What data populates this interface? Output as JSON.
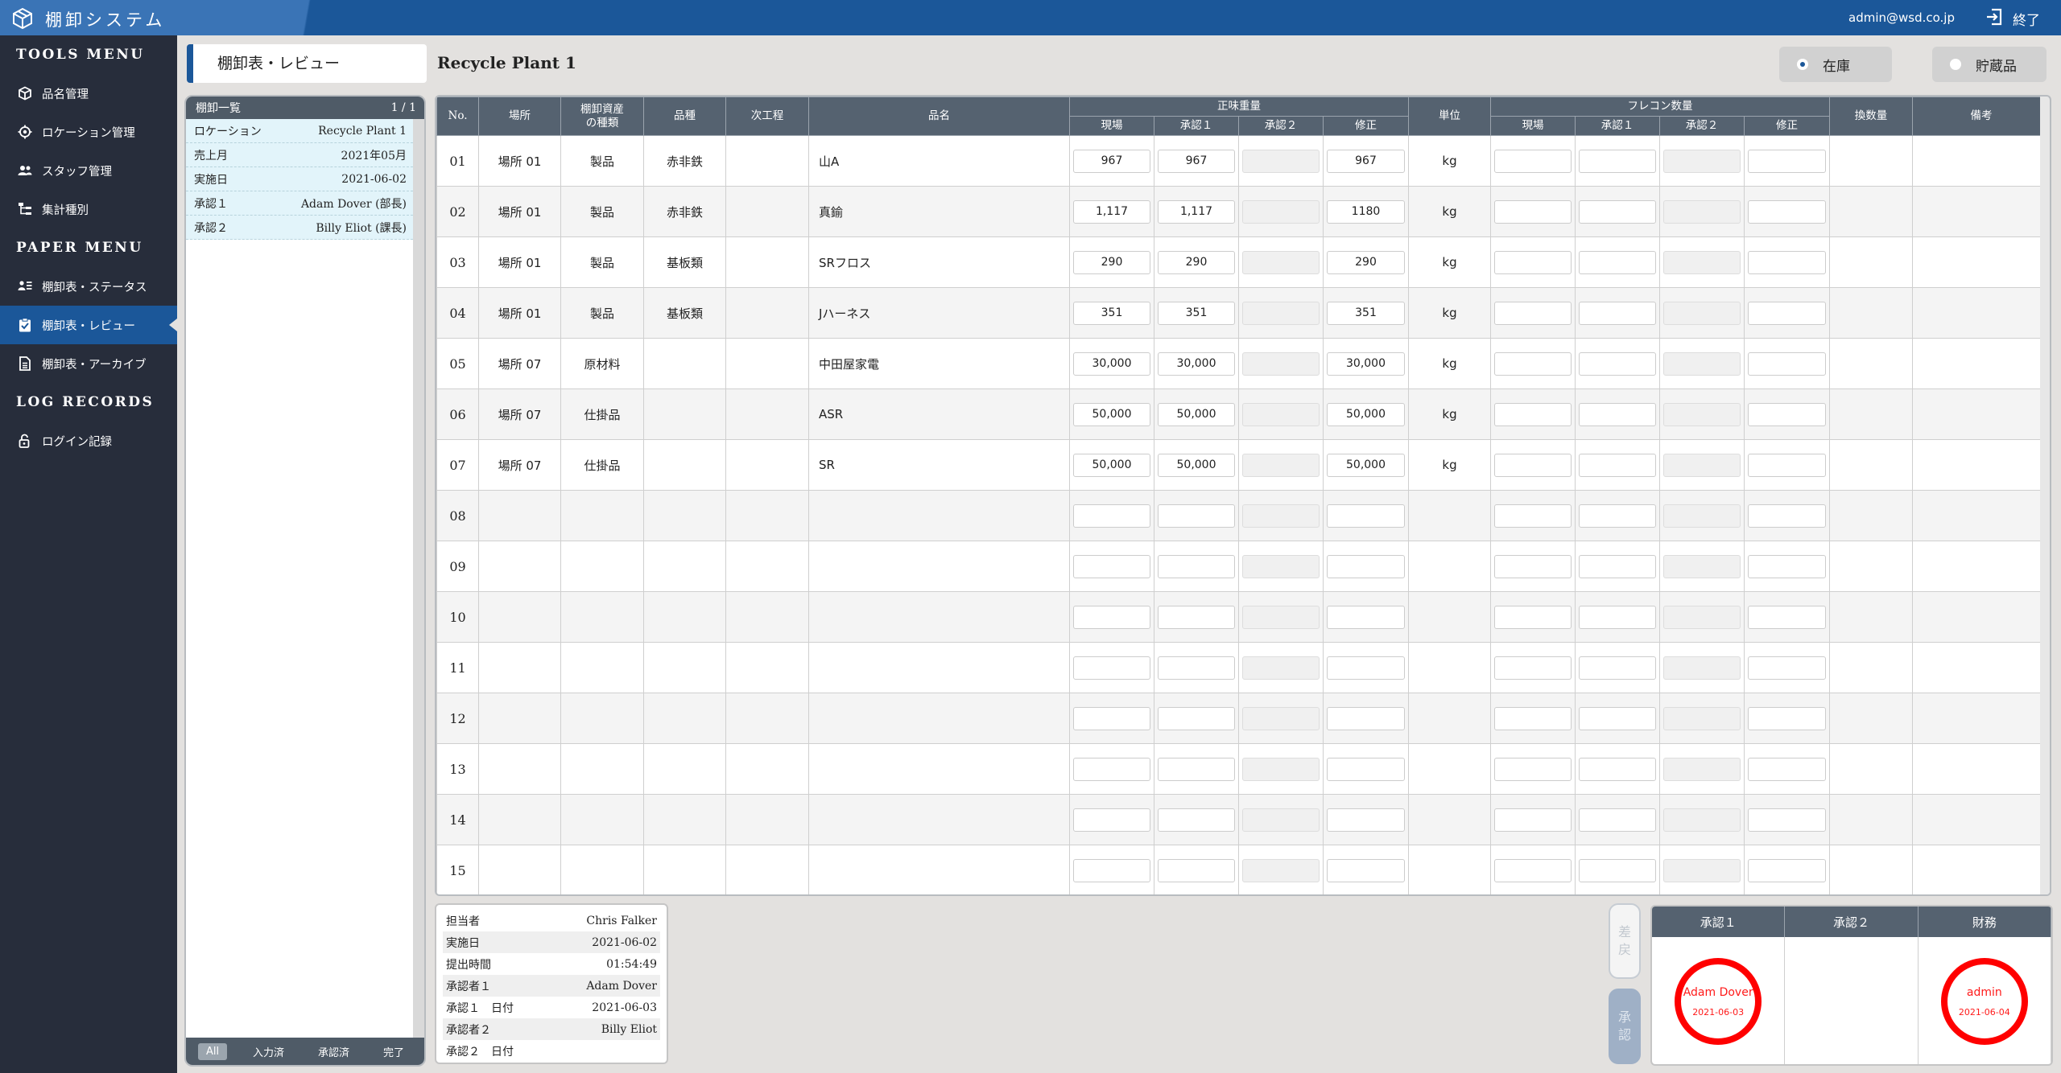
{
  "app": {
    "title": "棚卸システム",
    "user": "admin@wsd.co.jp",
    "exit_label": "終了"
  },
  "sidebar": {
    "sections": [
      {
        "title": "TOOLS MENU",
        "items": [
          {
            "label": "品名管理",
            "icon": "cube-icon"
          },
          {
            "label": "ロケーション管理",
            "icon": "crosshair-icon"
          },
          {
            "label": "スタッフ管理",
            "icon": "users-icon"
          },
          {
            "label": "集計種別",
            "icon": "sitemap-icon"
          }
        ]
      },
      {
        "title": "PAPER MENU",
        "items": [
          {
            "label": "棚卸表・ステータス",
            "icon": "list-user-icon"
          },
          {
            "label": "棚卸表・レビュー",
            "icon": "clipboard-check-icon",
            "active": true
          },
          {
            "label": "棚卸表・アーカイブ",
            "icon": "document-icon"
          }
        ]
      },
      {
        "title": "LOG RECORDS",
        "items": [
          {
            "label": "ログイン記録",
            "icon": "lock-open-icon"
          }
        ]
      }
    ]
  },
  "page": {
    "tab_label": "棚卸表・レビュー",
    "title": "Recycle Plant 1",
    "radio": [
      {
        "label": "在庫",
        "selected": true
      },
      {
        "label": "貯蔵品",
        "selected": false
      }
    ]
  },
  "list_panel": {
    "header": "棚卸一覧",
    "page": "1 / 1",
    "rows": [
      {
        "k": "ロケーション",
        "v": "Recycle Plant 1"
      },
      {
        "k": "売上月",
        "v": "2021年05月"
      },
      {
        "k": "実施日",
        "v": "2021-06-02"
      },
      {
        "k": "承認１",
        "v": "Adam Dover (部長)"
      },
      {
        "k": "承認２",
        "v": "Billy Eliot (課長)"
      }
    ],
    "filters": [
      {
        "label": "All",
        "active": true
      },
      {
        "label": "入力済",
        "active": false
      },
      {
        "label": "承認済",
        "active": false
      },
      {
        "label": "完了",
        "active": false
      }
    ]
  },
  "table": {
    "headers": {
      "no": "No.",
      "place": "場所",
      "asset_type": "棚卸資産\nの種類",
      "kind": "品種",
      "next_process": "次工程",
      "name": "品名",
      "net_weight": "正味重量",
      "unit": "単位",
      "flecon": "フレコン数量",
      "conversion": "換数量",
      "note": "備考"
    },
    "sub_headers": [
      "現場",
      "承認１",
      "承認２",
      "修正"
    ],
    "rows": [
      {
        "no": "01",
        "place": "場所 01",
        "asset_type": "製品",
        "kind": "赤非鉄",
        "next": "",
        "name": "山A",
        "w": [
          "967",
          "967",
          "",
          "967"
        ],
        "unit": "kg"
      },
      {
        "no": "02",
        "place": "場所 01",
        "asset_type": "製品",
        "kind": "赤非鉄",
        "next": "",
        "name": "真鍮",
        "w": [
          "1,117",
          "1,117",
          "",
          "1180"
        ],
        "unit": "kg"
      },
      {
        "no": "03",
        "place": "場所 01",
        "asset_type": "製品",
        "kind": "基板類",
        "next": "",
        "name": "SRフロス",
        "w": [
          "290",
          "290",
          "",
          "290"
        ],
        "unit": "kg"
      },
      {
        "no": "04",
        "place": "場所 01",
        "asset_type": "製品",
        "kind": "基板類",
        "next": "",
        "name": "Jハーネス",
        "w": [
          "351",
          "351",
          "",
          "351"
        ],
        "unit": "kg"
      },
      {
        "no": "05",
        "place": "場所 07",
        "asset_type": "原材料",
        "kind": "",
        "next": "",
        "name": "中田屋家電",
        "w": [
          "30,000",
          "30,000",
          "",
          "30,000"
        ],
        "unit": "kg"
      },
      {
        "no": "06",
        "place": "場所 07",
        "asset_type": "仕掛品",
        "kind": "",
        "next": "",
        "name": "ASR",
        "w": [
          "50,000",
          "50,000",
          "",
          "50,000"
        ],
        "unit": "kg"
      },
      {
        "no": "07",
        "place": "場所 07",
        "asset_type": "仕掛品",
        "kind": "",
        "next": "",
        "name": "SR",
        "w": [
          "50,000",
          "50,000",
          "",
          "50,000"
        ],
        "unit": "kg"
      },
      {
        "no": "08",
        "place": "",
        "asset_type": "",
        "kind": "",
        "next": "",
        "name": "",
        "w": [
          "",
          "",
          "",
          ""
        ],
        "unit": ""
      },
      {
        "no": "09",
        "place": "",
        "asset_type": "",
        "kind": "",
        "next": "",
        "name": "",
        "w": [
          "",
          "",
          "",
          ""
        ],
        "unit": ""
      },
      {
        "no": "10",
        "place": "",
        "asset_type": "",
        "kind": "",
        "next": "",
        "name": "",
        "w": [
          "",
          "",
          "",
          ""
        ],
        "unit": ""
      },
      {
        "no": "11",
        "place": "",
        "asset_type": "",
        "kind": "",
        "next": "",
        "name": "",
        "w": [
          "",
          "",
          "",
          ""
        ],
        "unit": ""
      },
      {
        "no": "12",
        "place": "",
        "asset_type": "",
        "kind": "",
        "next": "",
        "name": "",
        "w": [
          "",
          "",
          "",
          ""
        ],
        "unit": ""
      },
      {
        "no": "13",
        "place": "",
        "asset_type": "",
        "kind": "",
        "next": "",
        "name": "",
        "w": [
          "",
          "",
          "",
          ""
        ],
        "unit": ""
      },
      {
        "no": "14",
        "place": "",
        "asset_type": "",
        "kind": "",
        "next": "",
        "name": "",
        "w": [
          "",
          "",
          "",
          ""
        ],
        "unit": ""
      },
      {
        "no": "15",
        "place": "",
        "asset_type": "",
        "kind": "",
        "next": "",
        "name": "",
        "w": [
          "",
          "",
          "",
          ""
        ],
        "unit": ""
      }
    ]
  },
  "info": [
    {
      "k": "担当者",
      "v": "Chris Falker"
    },
    {
      "k": "実施日",
      "v": "2021-06-02"
    },
    {
      "k": "提出時間",
      "v": "01:54:49"
    },
    {
      "k": "承認者１",
      "v": "Adam Dover"
    },
    {
      "k": "承認１　日付",
      "v": "2021-06-03"
    },
    {
      "k": "承認者２",
      "v": "Billy Eliot"
    },
    {
      "k": "承認２　日付",
      "v": ""
    }
  ],
  "side_buttons": {
    "return_label": "差\n戻",
    "approve_label": "承\n認"
  },
  "approval": {
    "headers": [
      "承認１",
      "承認２",
      "財務"
    ],
    "stamps": [
      {
        "name": "Adam Dover",
        "date": "2021-06-03"
      },
      null,
      {
        "name": "admin",
        "date": "2021-06-04"
      }
    ],
    "stamp_color": "#ff0000"
  },
  "colors": {
    "primary": "#1b5799",
    "sidebar": "#272d3b",
    "header": "#556270"
  }
}
